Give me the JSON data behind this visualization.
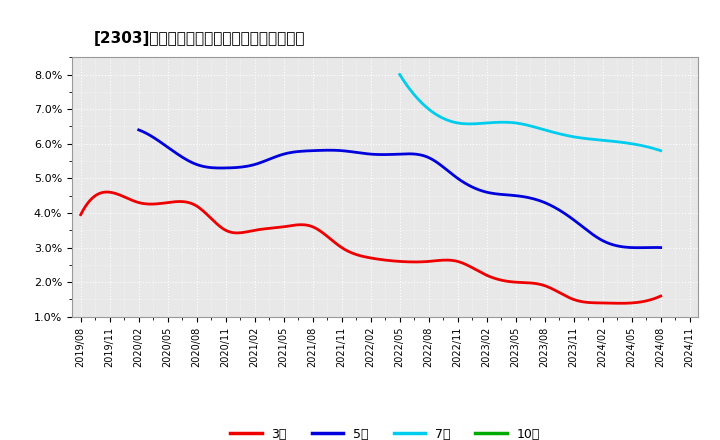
{
  "title": "[2303]　経常利益マージンの標準偏差の推移",
  "background_color": "#ffffff",
  "plot_bg_color": "#e8e8e8",
  "grid_color": "#ffffff",
  "ylim": [
    0.01,
    0.085
  ],
  "yticks": [
    0.01,
    0.02,
    0.03,
    0.04,
    0.05,
    0.06,
    0.07,
    0.08
  ],
  "xtick_labels": [
    "2019/08",
    "2019/11",
    "2020/02",
    "2020/05",
    "2020/08",
    "2020/11",
    "2021/02",
    "2021/05",
    "2021/08",
    "2021/11",
    "2022/02",
    "2022/05",
    "2022/08",
    "2022/11",
    "2023/02",
    "2023/05",
    "2023/08",
    "2023/11",
    "2024/02",
    "2024/05",
    "2024/08",
    "2024/11"
  ],
  "series": [
    {
      "label": "3年",
      "color": "#ee0000",
      "values": [
        0.0395,
        0.046,
        0.043,
        0.043,
        0.042,
        0.035,
        0.035,
        0.036,
        0.036,
        0.03,
        0.027,
        0.026,
        0.026,
        0.026,
        0.022,
        0.02,
        0.019,
        0.015,
        0.014,
        0.014,
        0.016,
        null
      ]
    },
    {
      "label": "5年",
      "color": "#0000dd",
      "values": [
        null,
        null,
        0.064,
        0.059,
        0.054,
        0.053,
        0.054,
        0.057,
        0.058,
        0.058,
        0.057,
        0.057,
        0.056,
        0.05,
        0.046,
        0.045,
        0.043,
        0.038,
        0.032,
        0.03,
        0.03,
        null
      ]
    },
    {
      "label": "7年",
      "color": "#00ccee",
      "values": [
        null,
        null,
        null,
        null,
        null,
        null,
        null,
        null,
        null,
        null,
        null,
        0.08,
        0.07,
        0.066,
        0.066,
        0.066,
        0.064,
        0.062,
        0.061,
        0.06,
        0.058,
        null
      ]
    },
    {
      "label": "10年",
      "color": "#00aa00",
      "values": [
        null,
        null,
        null,
        null,
        null,
        null,
        null,
        null,
        null,
        null,
        null,
        null,
        null,
        null,
        null,
        null,
        null,
        null,
        null,
        null,
        null,
        null
      ]
    }
  ],
  "legend_labels": [
    "3年",
    "5年",
    "7年",
    "10年"
  ],
  "legend_colors": [
    "#ee0000",
    "#0000dd",
    "#00ccee",
    "#00aa00"
  ]
}
